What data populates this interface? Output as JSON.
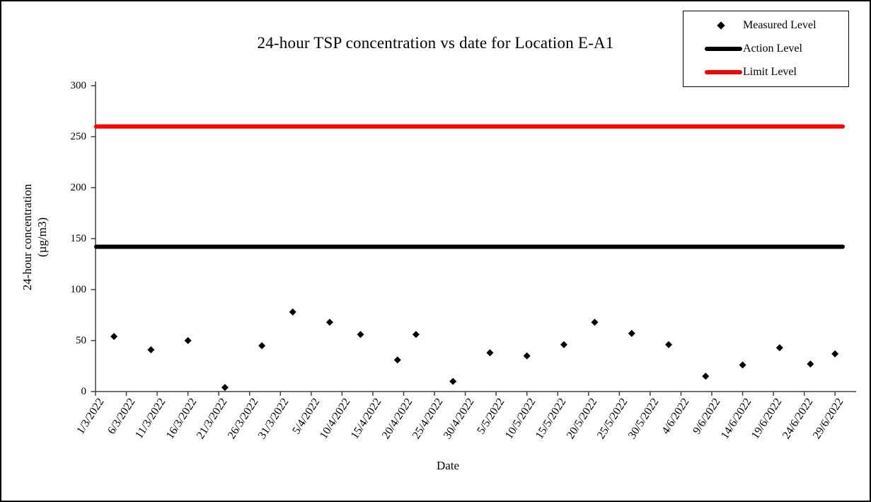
{
  "chart": {
    "title": "24-hour TSP concentration vs date for Location E-A1"
  },
  "legend": {
    "items": [
      {
        "label": "Measured Level",
        "marker": "diamond",
        "color": "#000000"
      },
      {
        "label": "Action Level",
        "marker": "thick-line",
        "color": "#000000"
      },
      {
        "label": "Limit Level",
        "marker": "thick-line",
        "color": "#ff0000"
      }
    ]
  },
  "axes": {
    "x_title": "Date",
    "y_title_line1": "24-hour concentration",
    "y_title_line2": "(µg/m3)"
  },
  "chart_data": {
    "type": "scatter",
    "title": "24-hour TSP concentration vs date for Location E-A1",
    "xlabel": "Date",
    "ylabel": "24-hour concentration (µg/m3)",
    "ylim": [
      0,
      300
    ],
    "yticks": [
      0,
      50,
      100,
      150,
      200,
      250,
      300
    ],
    "x_tick_labels": [
      "1/3/2022",
      "6/3/2022",
      "11/3/2022",
      "16/3/2022",
      "21/3/2022",
      "26/3/2022",
      "31/3/2022",
      "5/4/2022",
      "10/4/2022",
      "15/4/2022",
      "20/4/2022",
      "25/4/2022",
      "30/4/2022",
      "5/5/2022",
      "10/5/2022",
      "15/5/2022",
      "20/5/2022",
      "25/5/2022",
      "30/5/2022",
      "4/6/2022",
      "9/6/2022",
      "14/6/2022",
      "19/6/2022",
      "24/6/2022",
      "29/6/2022"
    ],
    "x_tick_interval_days": 5,
    "grid": false,
    "legend_position": "outside-top-right",
    "series": [
      {
        "name": "Measured Level",
        "kind": "points",
        "marker": "diamond",
        "color": "#000000",
        "points": [
          {
            "date": "4/3/2022",
            "day": 3,
            "value": 54
          },
          {
            "date": "10/3/2022",
            "day": 9,
            "value": 41
          },
          {
            "date": "16/3/2022",
            "day": 15,
            "value": 50
          },
          {
            "date": "22/3/2022",
            "day": 21,
            "value": 4
          },
          {
            "date": "28/3/2022",
            "day": 27,
            "value": 45
          },
          {
            "date": "2/4/2022",
            "day": 32,
            "value": 78
          },
          {
            "date": "8/4/2022",
            "day": 38,
            "value": 68
          },
          {
            "date": "13/4/2022",
            "day": 43,
            "value": 56
          },
          {
            "date": "19/4/2022",
            "day": 49,
            "value": 31
          },
          {
            "date": "22/4/2022",
            "day": 52,
            "value": 56
          },
          {
            "date": "28/4/2022",
            "day": 58,
            "value": 10
          },
          {
            "date": "4/5/2022",
            "day": 64,
            "value": 38
          },
          {
            "date": "10/5/2022",
            "day": 70,
            "value": 35
          },
          {
            "date": "16/5/2022",
            "day": 76,
            "value": 46
          },
          {
            "date": "21/5/2022",
            "day": 81,
            "value": 68
          },
          {
            "date": "27/5/2022",
            "day": 87,
            "value": 57
          },
          {
            "date": "2/6/2022",
            "day": 93,
            "value": 46
          },
          {
            "date": "8/6/2022",
            "day": 99,
            "value": 15
          },
          {
            "date": "14/6/2022",
            "day": 105,
            "value": 26
          },
          {
            "date": "20/6/2022",
            "day": 111,
            "value": 43
          },
          {
            "date": "25/6/2022",
            "day": 116,
            "value": 27
          },
          {
            "date": "29/6/2022",
            "day": 120,
            "value": 37
          }
        ]
      },
      {
        "name": "Action Level",
        "kind": "hline",
        "color": "#000000",
        "value": 142
      },
      {
        "name": "Limit Level",
        "kind": "hline",
        "color": "#ff0000",
        "value": 260
      }
    ]
  }
}
